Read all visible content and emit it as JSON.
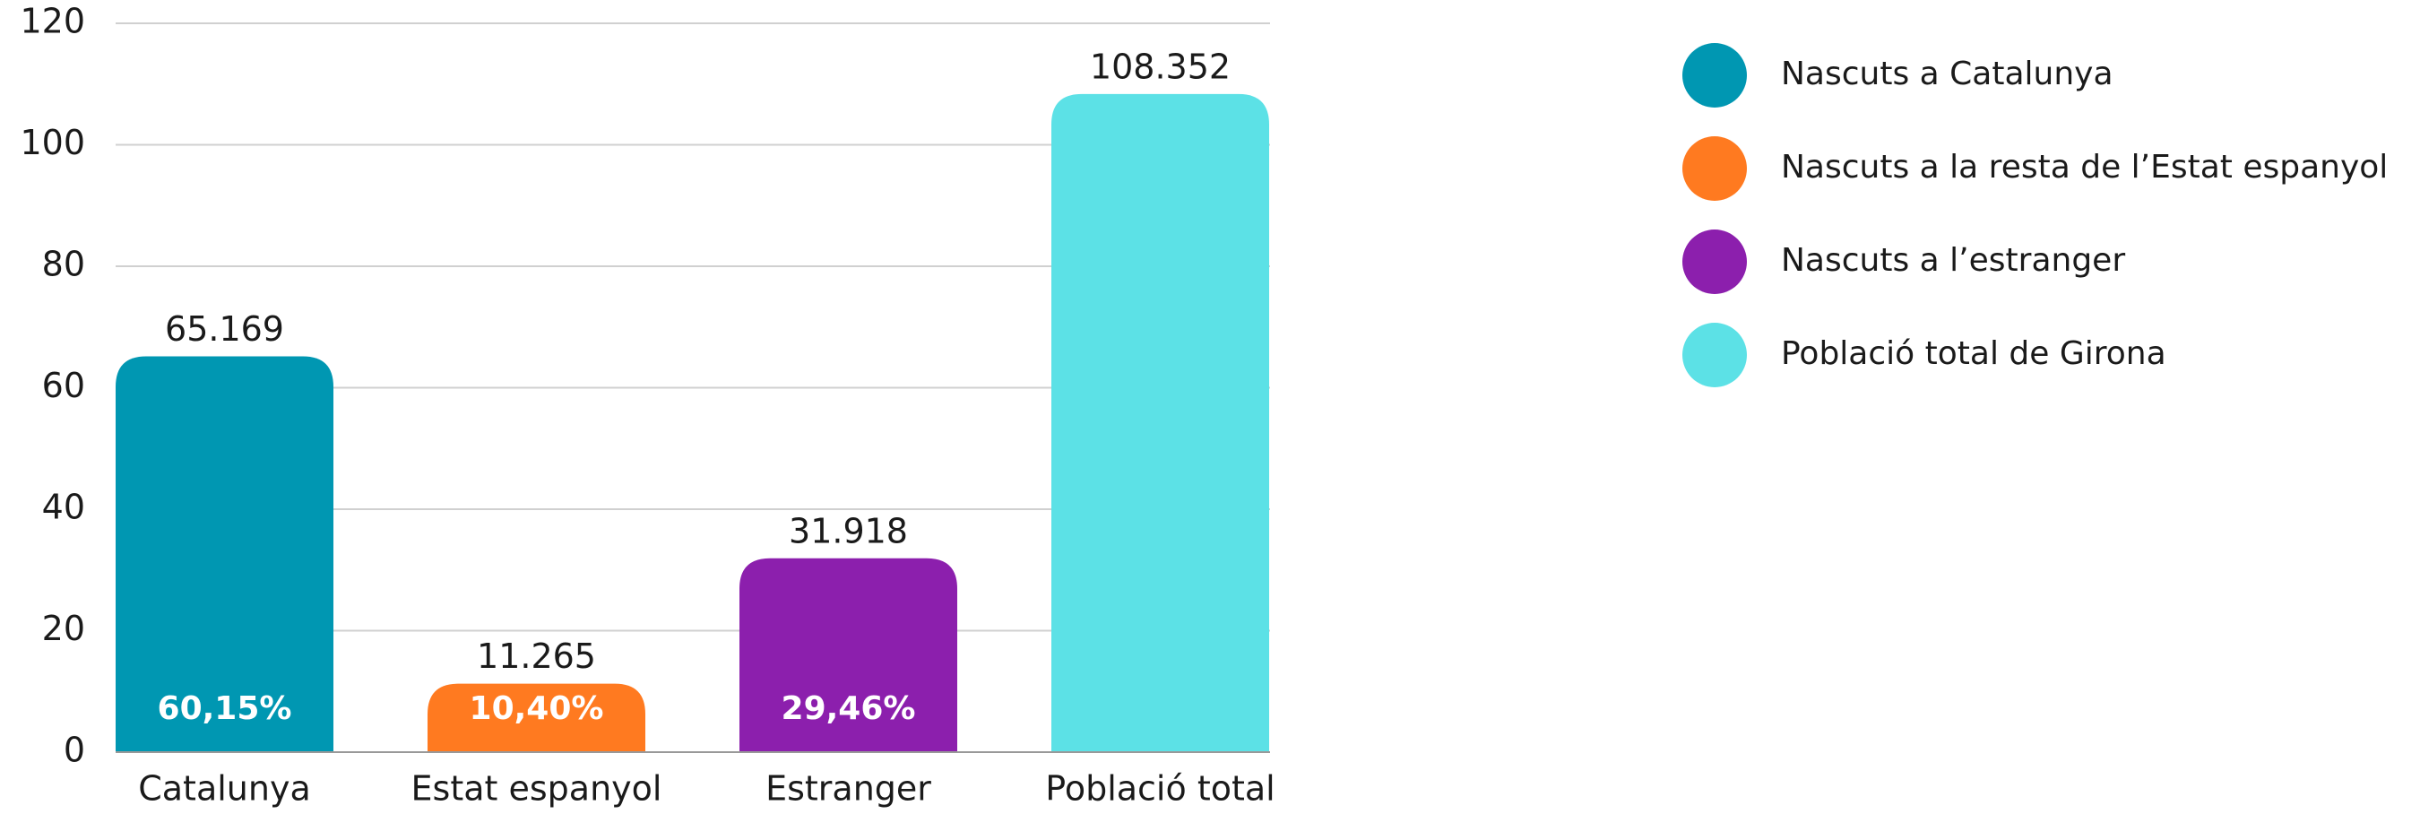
{
  "chart_data": {
    "type": "bar",
    "categories": [
      "Catalunya",
      "Estat espanyol",
      "Estranger",
      "Població total"
    ],
    "values": [
      65.169,
      11.265,
      31.918,
      108.352
    ],
    "colors": [
      "#0097b2",
      "#ff7a20",
      "#8c1fad",
      "#5ce1e6"
    ],
    "share_labels": [
      "60,15%",
      "10,40%",
      "29,46%",
      null
    ],
    "legend": [
      "Nascuts a Catalunya",
      "Nascuts a la resta de l’Estat espanyol",
      "Nascuts a l’estranger",
      "Població total de Girona"
    ],
    "ylim": [
      0,
      120
    ],
    "yticks": [
      0,
      20,
      40,
      60,
      80,
      100,
      120
    ],
    "grid": true
  }
}
